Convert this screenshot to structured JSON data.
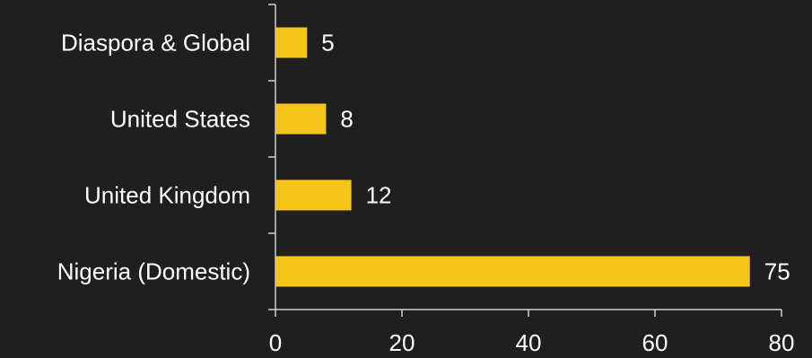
{
  "chart_data": {
    "type": "bar",
    "orientation": "horizontal",
    "categories": [
      "Diaspora & Global",
      "United States",
      "United Kingdom",
      "Nigeria (Domestic)"
    ],
    "values": [
      5,
      8,
      12,
      75
    ],
    "data_labels": [
      "5",
      "8",
      "12",
      "75"
    ],
    "title": "",
    "xlabel": "",
    "ylabel": "",
    "xlim": [
      0,
      80
    ],
    "x_ticks": [
      0,
      20,
      40,
      60,
      80
    ],
    "x_tick_labels": [
      "0",
      "20",
      "40",
      "60",
      "80"
    ],
    "grid": false,
    "legend": "none",
    "colors": {
      "background": "#1f1f1f",
      "bar": "#f5c518",
      "text": "#ffffff",
      "axis": "#cfcfcf"
    }
  }
}
